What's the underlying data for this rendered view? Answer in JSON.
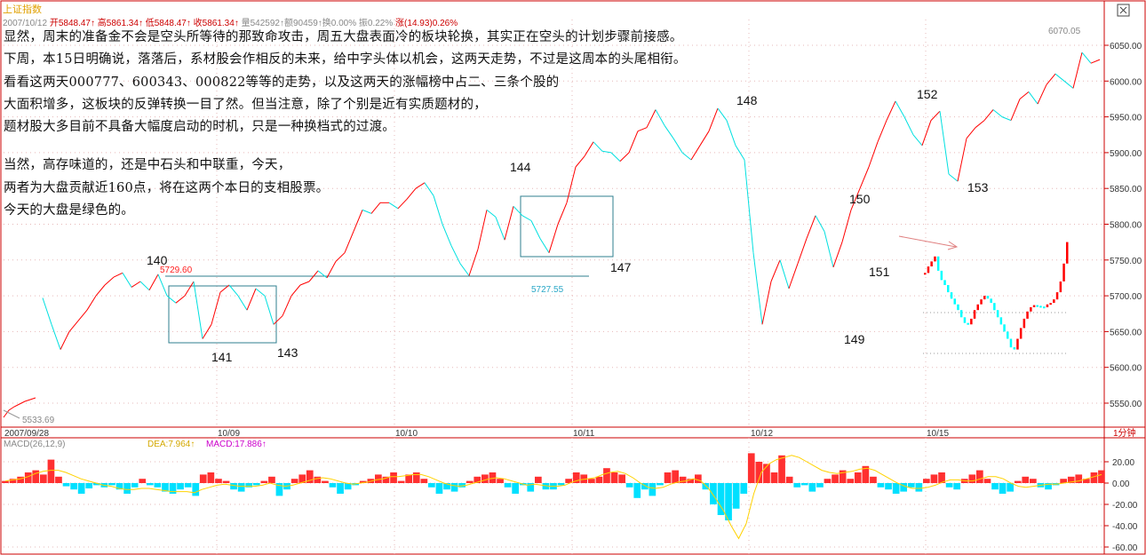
{
  "header": {
    "index_name": "上证指数",
    "stats_line": "2007/10/12  开5848.47↑高5861.34↑低5848.47↑收5861.34↑量542592↑额90459↑换0.00% 振0.22% 涨(14.93)0.26%",
    "open_label": "开5848.47",
    "high_label": "高5861.34",
    "low_label": "低5848.47",
    "close_label": "收5861.34",
    "rest_label": "量542592↑额90459↑换0.00% 振0.22%",
    "change_label": "涨(14.93)0.26%",
    "date_label": "2007/10/12"
  },
  "notes": [
    "显然，周末的准备金不会是空头所等待的那致命攻击，周五大盘表面冷的板块轮换，其实正在空头的计划步骤前接感。",
    "下周，本15日明确说，落落后，系材股会作相反的未来，给中字头体以机会，这两天走势，不过是这周本的头尾相衔。",
    "看看这两天000777、600343、000822等等的走势，以及这两天的涨幅榜中占二、三条个股的",
    "大面积增多，这板块的反弹转换一目了然。但当注意，除了个别是近有实质题材的，",
    "题材股大多目前不具备大幅度启动的时机，只是一种换档式的过渡。",
    "当然，高存味道的，还是中石头和中联重，今天，",
    "两者为大盘贡献近160点，将在这两个本日的支相股票。",
    "今天的大盘是绿色的。"
  ],
  "wave_labels": [
    "140",
    "141",
    "143",
    "144",
    "147",
    "148",
    "149",
    "150",
    "151",
    "152",
    "153"
  ],
  "price_annotations": {
    "high_5729": "5729.60",
    "low_5727": "5727.55",
    "top_6070": "6070.05",
    "low_5533": "5533.69"
  },
  "x_axis_dates": [
    "2007/09/28",
    "10/09",
    "10/10",
    "10/11",
    "10/12",
    "10/15"
  ],
  "period_label": "1分钟",
  "macd_header": {
    "name": "MACD(26,12,9)",
    "dea_label": "DEA:7.964↑",
    "macd_label": "MACD:17.886↑"
  },
  "colors": {
    "up": "#ff0000",
    "down": "#00ffff",
    "price_line_up": "#ff0000",
    "price_line_down": "#00e0e0",
    "axis": "#cc0000",
    "dea": "#ffd200",
    "macd_text": "#cc00cc",
    "annotation_box": "#2f7f8f"
  },
  "chart_data": {
    "type": "line",
    "title": "上证指数",
    "xlabel": "",
    "ylabel": "",
    "ylim": [
      5510,
      6090
    ],
    "y_ticks": [
      5550,
      5600,
      5650,
      5700,
      5750,
      5800,
      5850,
      5900,
      5950,
      6000,
      6050
    ],
    "y_tick_labels": [
      "5550.00",
      "5600.00",
      "5650.00",
      "5700.00",
      "5750.00",
      "5800.00",
      "5850.00",
      "5900.00",
      "5950.00",
      "6000.00",
      "6050.00"
    ],
    "series": [
      {
        "values": [
          5697,
          5660,
          5625,
          5650,
          5665,
          5680,
          5700,
          5715,
          5726,
          5732,
          5712,
          5720,
          5708,
          5730,
          5700,
          5690,
          5700,
          5720,
          5640,
          5660,
          5705,
          5715,
          5700,
          5680,
          5710,
          5700,
          5660,
          5672,
          5700,
          5715,
          5720,
          5735,
          5725,
          5748,
          5760,
          5790,
          5820,
          5815,
          5830,
          5830,
          5822,
          5835,
          5850,
          5858,
          5840,
          5800,
          5770,
          5745,
          5728,
          5765,
          5820,
          5810,
          5778,
          5825,
          5812,
          5805,
          5780,
          5760,
          5800,
          5830,
          5880,
          5895,
          5915,
          5902,
          5900,
          5888,
          5900,
          5930,
          5935,
          5960,
          5938,
          5920,
          5900,
          5890,
          5910,
          5930,
          5962,
          5945,
          5910,
          5890,
          5760,
          5660,
          5720,
          5750,
          5710,
          5745,
          5780,
          5812,
          5790,
          5740,
          5775,
          5820,
          5850,
          5880,
          5915,
          5945,
          5972,
          5950,
          5925,
          5910,
          5945,
          5958,
          5870,
          5860,
          5920,
          5935,
          5945,
          5960,
          5950,
          5945,
          5975,
          5985,
          5968,
          5995,
          6010,
          6000,
          5990,
          6040,
          6025,
          6030
        ]
      }
    ],
    "volume_box": {
      "type": "bar",
      "values": [
        5732,
        5741,
        5748,
        5755,
        5735,
        5722,
        5715,
        5705,
        5696,
        5688,
        5680,
        5670,
        5662,
        5660,
        5668,
        5680,
        5688,
        5695,
        5700,
        5696,
        5690,
        5680,
        5670,
        5660,
        5650,
        5640,
        5628,
        5625,
        5640,
        5655,
        5668,
        5678,
        5684,
        5687,
        5686,
        5685,
        5684,
        5688,
        5690,
        5695,
        5705,
        5720,
        5745,
        5775
      ],
      "colors_up_down": "mixed"
    },
    "macd": {
      "ylim": [
        -70,
        35
      ],
      "y_ticks": [
        20,
        0,
        -20,
        -40,
        -60
      ],
      "y_tick_labels": [
        "20.00",
        "0.00",
        "-20.00",
        "-40.00",
        "-60.00"
      ],
      "histogram": [
        2,
        4,
        6,
        10,
        12,
        8,
        22,
        6,
        -3,
        -6,
        -10,
        -5,
        -2,
        -4,
        -2,
        -6,
        -10,
        -4,
        4,
        -2,
        -4,
        -8,
        -10,
        -6,
        -4,
        -12,
        8,
        10,
        4,
        2,
        -6,
        -8,
        -4,
        -2,
        2,
        6,
        -12,
        -6,
        4,
        8,
        12,
        6,
        2,
        -4,
        -10,
        -6,
        -2,
        2,
        4,
        8,
        6,
        10,
        2,
        8,
        10,
        4,
        -4,
        -10,
        -6,
        -8,
        -4,
        2,
        6,
        8,
        10,
        4,
        -4,
        -10,
        -2,
        -8,
        6,
        -6,
        -6,
        -2,
        4,
        10,
        8,
        4,
        6,
        14,
        10,
        8,
        -4,
        -14,
        -6,
        -12,
        -2,
        10,
        12,
        6,
        4,
        8,
        -6,
        -20,
        -30,
        -35,
        -24,
        -10,
        28,
        20,
        18,
        10,
        26,
        6,
        -4,
        -2,
        -8,
        -4,
        4,
        8,
        12,
        4,
        10,
        16,
        6,
        -4,
        -6,
        -10,
        -8,
        -4,
        -8,
        4,
        8,
        10,
        -4,
        -6,
        4,
        8,
        12,
        4,
        -6,
        -10,
        -8,
        2,
        6,
        4,
        -4,
        -6,
        -2,
        4,
        6,
        8,
        4,
        10,
        12
      ],
      "dea": [
        2,
        3,
        4,
        6,
        9,
        11,
        12,
        12,
        10,
        7,
        4,
        2,
        0,
        -2,
        -3,
        -5,
        -6,
        -6,
        -5,
        -5,
        -6,
        -7,
        -8,
        -8,
        -8,
        -9,
        -6,
        -4,
        -2,
        -1,
        -2,
        -3,
        -3,
        -3,
        -2,
        0,
        -2,
        -3,
        -2,
        0,
        2,
        4,
        5,
        4,
        2,
        0,
        -1,
        0,
        1,
        3,
        4,
        6,
        6,
        7,
        8,
        8,
        6,
        3,
        0,
        -2,
        -3,
        -2,
        0,
        2,
        4,
        5,
        4,
        2,
        0,
        -2,
        -1,
        -2,
        -3,
        -3,
        -2,
        1,
        3,
        4,
        5,
        8,
        10,
        11,
        9,
        5,
        0,
        -4,
        -5,
        -4,
        -1,
        1,
        2,
        4,
        2,
        -5,
        -15,
        -26,
        -40,
        -52,
        -38,
        -10,
        10,
        18,
        22,
        24,
        26,
        24,
        20,
        16,
        12,
        10,
        9,
        10,
        11,
        13,
        14,
        12,
        8,
        4,
        0,
        -3,
        -5,
        -5,
        -4,
        -2,
        1,
        3,
        3,
        2,
        2,
        4,
        6,
        6,
        4,
        0,
        -3,
        -4,
        -3,
        -2,
        -1,
        -1,
        0,
        1,
        2,
        4,
        6,
        8
      ]
    }
  }
}
